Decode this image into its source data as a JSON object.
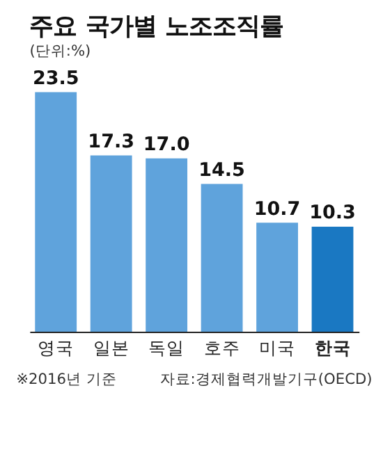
{
  "chart_data": {
    "type": "bar",
    "title": "주요 국가별 노조조직률",
    "subtitle": "(단위:%)",
    "categories": [
      "영국",
      "일본",
      "독일",
      "호주",
      "미국",
      "한국"
    ],
    "values": [
      23.5,
      17.3,
      17.0,
      14.5,
      10.7,
      10.3
    ],
    "colors": [
      "#5fa3dc",
      "#5fa3dc",
      "#5fa3dc",
      "#5fa3dc",
      "#5fa3dc",
      "#1a78c2"
    ],
    "value_labels": [
      "23.5",
      "17.3",
      "17.0",
      "14.5",
      "10.7",
      "10.3"
    ],
    "relative": false,
    "annotations": [
      "※2016년 기준",
      "자료:경제협력개발기구(OECD)"
    ]
  }
}
